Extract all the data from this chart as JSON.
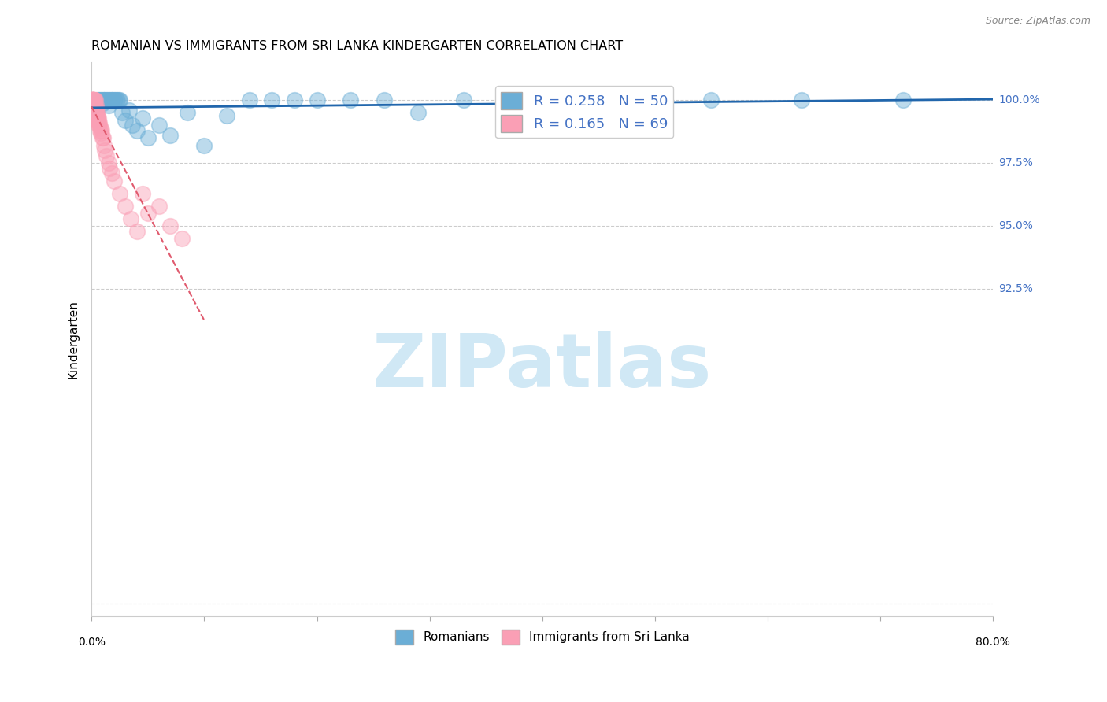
{
  "title": "ROMANIAN VS IMMIGRANTS FROM SRI LANKA KINDERGARTEN CORRELATION CHART",
  "source": "Source: ZipAtlas.com",
  "ylabel": "Kindergarten",
  "blue_color": "#6BAED6",
  "pink_color": "#FA9FB5",
  "trendline_blue": "#2166AC",
  "trendline_pink": "#E05A6E",
  "blue_R": 0.258,
  "blue_N": 50,
  "pink_R": 0.165,
  "pink_N": 69,
  "xlim": [
    0,
    80
  ],
  "ylim": [
    79.5,
    101.5
  ],
  "xgrid_ticks": [
    0,
    10,
    20,
    30,
    40,
    50,
    60,
    70,
    80
  ],
  "ygrid_ticks": [
    92.5,
    95.0,
    97.5,
    100.0
  ],
  "ytick_right_labels": [
    "92.5%",
    "95.0%",
    "97.5%",
    "100.0%"
  ],
  "xtick_edge_labels": [
    "0.0%",
    "80.0%"
  ],
  "blue_scatter_x": [
    0.3,
    0.5,
    0.6,
    0.7,
    0.8,
    0.9,
    1.0,
    1.0,
    1.1,
    1.2,
    1.3,
    1.4,
    1.5,
    1.5,
    1.6,
    1.7,
    1.8,
    1.9,
    2.0,
    2.1,
    2.2,
    2.3,
    2.4,
    2.5,
    2.7,
    3.0,
    3.3,
    3.6,
    4.0,
    4.5,
    5.0,
    6.0,
    7.0,
    8.5,
    10.0,
    12.0,
    14.0,
    16.0,
    18.0,
    20.0,
    23.0,
    26.0,
    29.0,
    33.0,
    37.0,
    42.0,
    48.0,
    55.0,
    63.0,
    72.0
  ],
  "blue_scatter_y": [
    99.8,
    100.0,
    100.0,
    100.0,
    100.0,
    100.0,
    100.0,
    99.9,
    100.0,
    100.0,
    100.0,
    100.0,
    100.0,
    99.8,
    100.0,
    100.0,
    100.0,
    100.0,
    100.0,
    100.0,
    100.0,
    100.0,
    100.0,
    100.0,
    99.5,
    99.2,
    99.6,
    99.0,
    98.8,
    99.3,
    98.5,
    99.0,
    98.6,
    99.5,
    98.2,
    99.4,
    100.0,
    100.0,
    100.0,
    100.0,
    100.0,
    100.0,
    99.5,
    100.0,
    100.0,
    100.0,
    100.0,
    100.0,
    100.0,
    100.0
  ],
  "pink_scatter_x": [
    0.02,
    0.03,
    0.04,
    0.05,
    0.06,
    0.07,
    0.08,
    0.09,
    0.1,
    0.1,
    0.12,
    0.13,
    0.14,
    0.15,
    0.15,
    0.16,
    0.17,
    0.18,
    0.19,
    0.2,
    0.2,
    0.22,
    0.23,
    0.25,
    0.25,
    0.27,
    0.28,
    0.3,
    0.3,
    0.32,
    0.35,
    0.37,
    0.38,
    0.4,
    0.4,
    0.42,
    0.45,
    0.47,
    0.5,
    0.5,
    0.53,
    0.55,
    0.58,
    0.6,
    0.63,
    0.65,
    0.7,
    0.75,
    0.8,
    0.85,
    0.9,
    0.95,
    1.0,
    1.1,
    1.2,
    1.3,
    1.5,
    1.6,
    1.8,
    2.0,
    2.5,
    3.0,
    3.5,
    4.0,
    4.5,
    5.0,
    6.0,
    7.0,
    8.0
  ],
  "pink_scatter_y": [
    100.0,
    100.0,
    100.0,
    100.0,
    100.0,
    100.0,
    100.0,
    100.0,
    100.0,
    99.8,
    100.0,
    100.0,
    100.0,
    100.0,
    99.9,
    100.0,
    100.0,
    100.0,
    100.0,
    100.0,
    99.7,
    99.8,
    100.0,
    99.8,
    100.0,
    99.7,
    99.8,
    99.6,
    100.0,
    99.7,
    99.5,
    99.8,
    99.5,
    99.5,
    99.7,
    99.4,
    99.4,
    99.3,
    99.2,
    99.5,
    99.3,
    99.2,
    99.1,
    99.3,
    99.0,
    99.1,
    99.0,
    98.8,
    98.9,
    98.7,
    98.8,
    98.5,
    98.5,
    98.2,
    98.0,
    97.8,
    97.5,
    97.3,
    97.1,
    96.8,
    96.3,
    95.8,
    95.3,
    94.8,
    96.3,
    95.5,
    95.8,
    95.0,
    94.5
  ],
  "watermark_text": "ZIPatlas",
  "watermark_color": "#D0E8F5",
  "watermark_fontsize": 68,
  "bottom_legend_labels": [
    "Romanians",
    "Immigrants from Sri Lanka"
  ]
}
